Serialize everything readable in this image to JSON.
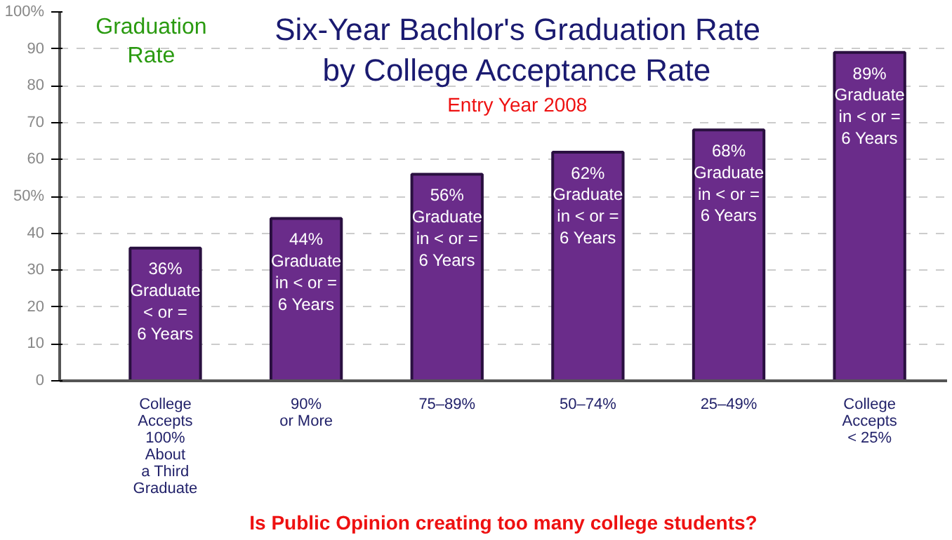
{
  "chart_data": {
    "type": "bar",
    "title": "Six-Year Bachlor's Graduation Rate\nby College Acceptance Rate",
    "subtitle": "Entry Year 2008",
    "ylabel": "Graduation\nRate",
    "categories": [
      "College\nAccepts\n100%\nAbout\na Third\nGraduate",
      "90%\nor More",
      "75–89%",
      "50–74%",
      "25–49%",
      "College\nAccepts\n< 25%"
    ],
    "values": [
      36,
      44,
      56,
      62,
      68,
      89
    ],
    "color": "#6a2c8a",
    "value_labels": [
      "36%\nGraduate\n< or =\n6 Years",
      "44%\nGraduate\nin < or =\n6 Years",
      "56%\nGraduate\nin < or =\n6 Years",
      "62%\nGraduate\nin < or =\n6 Years",
      "68%\nGraduate\nin < or =\n6 Years",
      "89%\nGraduate\nin < or =\n6 Years"
    ],
    "ylim": [
      0,
      100
    ],
    "yticks": [
      0,
      10,
      20,
      30,
      40,
      {
        "value": 50,
        "label": "50%"
      },
      60,
      70,
      80,
      90,
      {
        "value": 100,
        "label": "100%"
      }
    ],
    "grid": "y",
    "annotations": [
      "Is Public Opinion creating too many college students?"
    ]
  }
}
